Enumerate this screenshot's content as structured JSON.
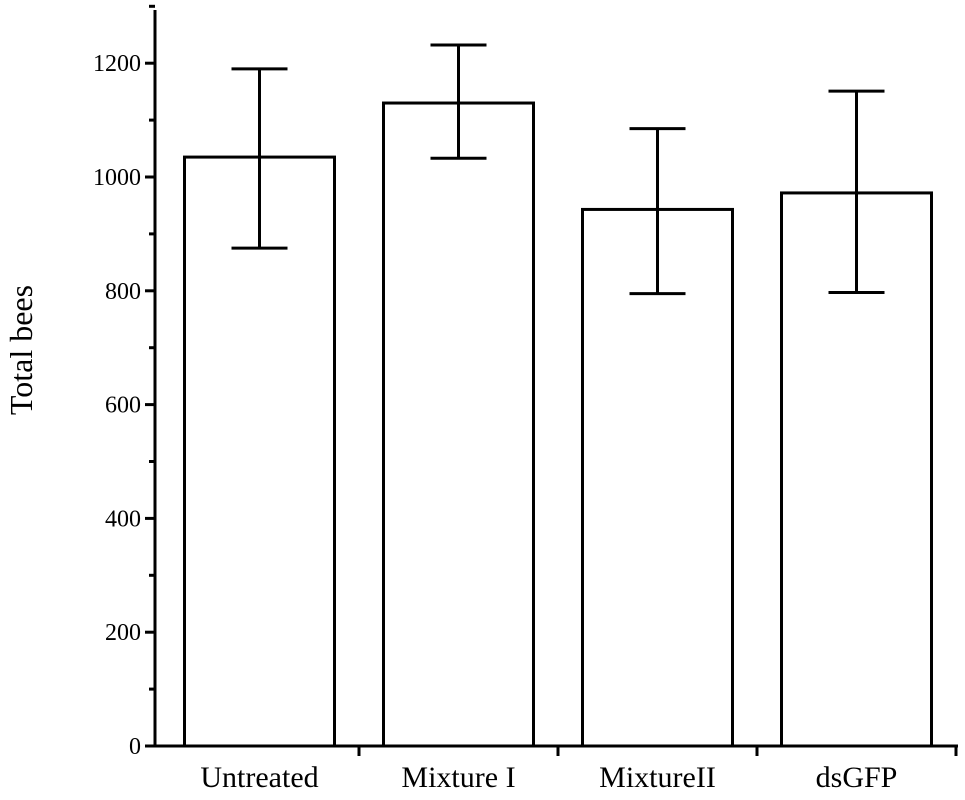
{
  "chart_data": {
    "type": "bar",
    "categories": [
      "Untreated",
      "Mixture I",
      "MixtureII",
      "dsGFP"
    ],
    "values": [
      1035,
      1130,
      943,
      972
    ],
    "error_low": [
      875,
      1033,
      795,
      797
    ],
    "error_high": [
      1190,
      1232,
      1085,
      1151
    ],
    "xlabel": "",
    "ylabel": "Total bees",
    "ylim": [
      0,
      1300
    ],
    "yticks": [
      0,
      200,
      400,
      600,
      800,
      1000,
      1200
    ],
    "grid": false,
    "legend": "none",
    "colors": {
      "bar_fill": "#ffffff",
      "stroke": "#000000"
    }
  }
}
